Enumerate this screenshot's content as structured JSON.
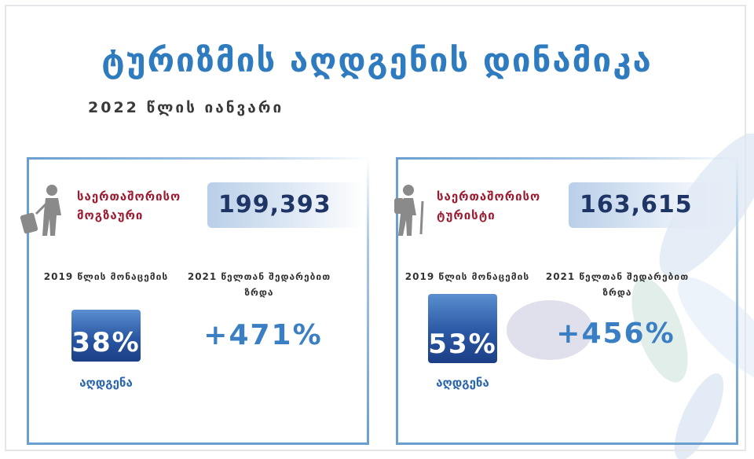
{
  "header": {
    "title": "ტურიზმის აღდგენის დინამიკა",
    "subtitle": "2022 წლის იანვარი"
  },
  "panels": [
    {
      "label": "საერთაშორისო მოგზაური",
      "value": "199,393",
      "baseline_caption": "2019 წლის მონაცემის",
      "recovery": "38%",
      "recovery_caption": "აღდგენა",
      "growth_caption": "2021 წელთან შედარებით ზრდა",
      "growth": "+471%"
    },
    {
      "label": "საერთაშორისო ტურისტი",
      "value": "163,615",
      "baseline_caption": "2019 წლის მონაცემის",
      "recovery": "53%",
      "recovery_caption": "აღდგენა",
      "growth_caption": "2021 წელთან შედარებით ზრდა",
      "growth": "+456%"
    }
  ]
}
